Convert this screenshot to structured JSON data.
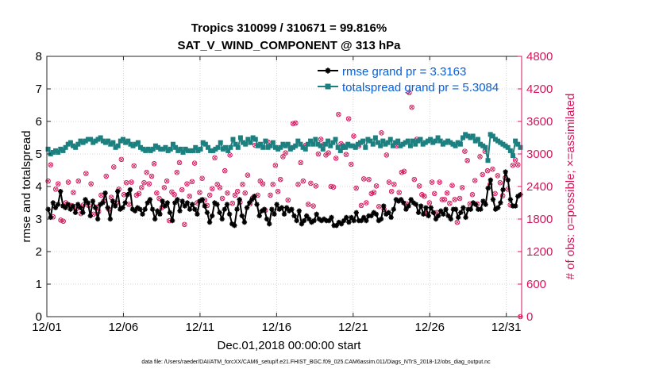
{
  "chart_data": {
    "type": "line",
    "title_line1": "Tropics 310099 / 310671 = 99.816%",
    "title_line2": "SAT_V_WIND_COMPONENT @ 313 hPa",
    "xlabel": "Dec.01,2018 00:00:00 start",
    "ylabel_left": "rmse and totalspread",
    "ylabel_right": "# of obs: o=possible; ×=assimilated",
    "footnote": "data file: /Users/raeder/DAI/ATM_forcXX/CAM6_setup/f.e21.FHIST_BGC.f09_025.CAM6assim.011/Diags_NTrS_2018-12/obs_diag_output.nc",
    "x_range_days": [
      0,
      31
    ],
    "x_ticks": [
      {
        "day": 0,
        "label": "12/01"
      },
      {
        "day": 5,
        "label": "12/06"
      },
      {
        "day": 10,
        "label": "12/11"
      },
      {
        "day": 15,
        "label": "12/16"
      },
      {
        "day": 20,
        "label": "12/21"
      },
      {
        "day": 25,
        "label": "12/26"
      },
      {
        "day": 30,
        "label": "12/31"
      }
    ],
    "y_left_range": [
      0,
      8
    ],
    "y_left_ticks": [
      "0",
      "1",
      "2",
      "3",
      "4",
      "5",
      "6",
      "7",
      "8"
    ],
    "y_right_range": [
      0,
      4800
    ],
    "y_right_ticks": [
      "0",
      "600",
      "1200",
      "1800",
      "2400",
      "3000",
      "3600",
      "4200",
      "4800"
    ],
    "legend": [
      {
        "name": "rmse grand pr = 3.3163",
        "color": "#000000"
      },
      {
        "name": "totalspread grand pr = 5.3084",
        "color": "#1b8080"
      }
    ],
    "rmse_values": [
      3.3,
      3.05,
      3.5,
      3.35,
      3.45,
      3.85,
      3.4,
      3.35,
      3.45,
      3.3,
      3.4,
      3.2,
      3.45,
      3.35,
      3.2,
      3.6,
      3.5,
      3.1,
      3.55,
      3.35,
      3.0,
      3.45,
      3.5,
      3.8,
      3.35,
      3.0,
      3.55,
      3.4,
      3.85,
      3.3,
      3.35,
      3.5,
      3.75,
      3.9,
      3.3,
      3.25,
      3.35,
      3.3,
      3.15,
      3.3,
      3.5,
      3.6,
      3.3,
      3.0,
      3.25,
      3.15,
      3.55,
      3.4,
      3.5,
      3.2,
      2.95,
      3.5,
      3.6,
      3.25,
      3.55,
      3.4,
      3.5,
      3.3,
      3.45,
      3.3,
      3.15,
      3.55,
      3.6,
      3.4,
      3.2,
      2.9,
      3.1,
      3.5,
      3.45,
      3.2,
      3.0,
      3.3,
      3.45,
      3.15,
      2.85,
      2.8,
      3.3,
      3.6,
      3.1,
      2.9,
      3.35,
      3.5,
      3.6,
      3.7,
      3.45,
      3.1,
      3.25,
      3.3,
      3.0,
      2.85,
      3.3,
      3.15,
      3.45,
      3.3,
      3.35,
      3.15,
      3.35,
      3.25,
      3.3,
      3.1,
      2.95,
      3.25,
      2.85,
      2.95,
      3.1,
      3.0,
      2.9,
      2.95,
      3.15,
      3.0,
      2.95,
      3.0,
      2.95,
      2.95,
      3.05,
      2.8,
      2.8,
      2.9,
      2.85,
      2.95,
      3.05,
      2.9,
      3.05,
      2.95,
      3.2,
      2.95,
      2.95,
      3.05,
      2.95,
      3.1,
      3.1,
      3.2,
      3.15,
      2.95,
      3.0,
      3.4,
      3.15,
      3.2,
      3.05,
      3.3,
      3.6,
      3.55,
      3.6,
      3.5,
      3.3,
      3.4,
      3.6,
      3.5,
      3.45,
      3.2,
      3.4,
      3.15,
      3.35,
      3.1,
      3.35,
      3.2,
      3.0,
      3.1,
      3.25,
      3.15,
      3.3,
      3.1,
      3.0,
      3.3,
      3.3,
      3.05,
      3.2,
      3.35,
      3.05,
      3.3,
      3.3,
      3.5,
      3.45,
      3.3,
      3.3,
      3.55,
      3.45,
      3.95,
      4.2,
      3.6,
      3.3,
      3.35,
      3.5,
      3.9,
      4.45,
      4.2,
      3.6,
      3.4,
      3.4,
      3.7,
      3.75
    ],
    "spread_values": [
      5.15,
      5.0,
      5.05,
      5.1,
      5.05,
      5.15,
      5.1,
      5.2,
      5.3,
      5.35,
      5.25,
      5.2,
      5.3,
      5.4,
      5.35,
      5.4,
      5.45,
      5.45,
      5.35,
      5.4,
      5.45,
      5.5,
      5.4,
      5.35,
      5.4,
      5.3,
      5.35,
      5.2,
      5.25,
      5.4,
      5.45,
      5.35,
      5.4,
      5.3,
      5.25,
      5.3,
      5.35,
      5.2,
      5.15,
      5.1,
      5.15,
      5.1,
      5.15,
      5.25,
      5.2,
      5.15,
      5.15,
      5.2,
      5.1,
      5.15,
      5.3,
      5.2,
      5.1,
      5.15,
      5.05,
      5.15,
      5.1,
      5.1,
      5.1,
      5.2,
      5.1,
      5.15,
      5.35,
      5.3,
      5.2,
      5.1,
      5.1,
      5.15,
      5.2,
      5.35,
      5.15,
      5.2,
      5.1,
      5.2,
      5.45,
      5.3,
      5.2,
      5.5,
      5.35,
      5.3,
      5.45,
      5.35,
      5.5,
      5.45,
      5.25,
      5.3,
      5.2,
      5.4,
      5.2,
      5.25,
      5.35,
      5.2,
      5.15,
      5.2,
      5.3,
      5.25,
      5.3,
      5.15,
      5.2,
      5.25,
      5.4,
      5.3,
      5.2,
      5.15,
      5.3,
      5.4,
      5.3,
      5.45,
      5.3,
      5.25,
      5.15,
      5.3,
      5.4,
      5.25,
      5.35,
      5.45,
      5.2,
      5.1,
      5.25,
      5.2,
      5.3,
      5.25,
      5.25,
      5.2,
      5.3,
      5.35,
      5.4,
      5.2,
      5.45,
      5.4,
      5.3,
      5.5,
      5.35,
      5.25,
      5.4,
      5.3,
      5.35,
      5.45,
      5.25,
      5.35,
      5.4,
      5.25,
      5.3,
      5.35,
      5.4,
      5.25,
      5.4,
      5.3,
      5.4,
      5.45,
      5.3,
      5.35,
      5.4,
      5.45,
      5.35,
      5.4,
      5.5,
      5.4,
      5.3,
      5.35,
      5.4,
      5.35,
      5.3,
      5.25,
      5.35,
      5.3,
      5.5,
      5.6,
      5.55,
      5.5,
      5.55,
      5.4,
      5.45,
      5.3,
      5.25,
      5.2,
      4.8,
      5.6,
      5.55,
      5.45,
      5.4,
      5.35,
      5.3,
      5.25,
      5.2,
      5.1,
      4.95,
      5.4,
      5.3,
      5.2
    ],
    "obs_possible": [
      2500,
      2800,
      1840,
      2350,
      2450,
      1780,
      1760,
      2100,
      2480,
      2050,
      2290,
      1980,
      2500,
      1900,
      2060,
      2640,
      2050,
      2450,
      1890,
      2020,
      1940,
      2240,
      2130,
      2590,
      1980,
      2200,
      2760,
      2100,
      2350,
      2900,
      2250,
      2470,
      2070,
      2480,
      2780,
      2240,
      2270,
      2380,
      2470,
      2660,
      2450,
      2590,
      2820,
      2280,
      2180,
      2010,
      2380,
      2500,
      1770,
      2300,
      2250,
      2660,
      2840,
      2340,
      1700,
      2450,
      2220,
      2490,
      2830,
      2100,
      2290,
      2550,
      2150,
      2050,
      2240,
      2360,
      2930,
      2440,
      2380,
      2180,
      2690,
      2280,
      2980,
      2090,
      2240,
      2310,
      2110,
      2440,
      2280,
      2610,
      2080,
      2190,
      3160,
      2240,
      2500,
      2450,
      1960,
      3220,
      2240,
      2440,
      2790,
      2310,
      2530,
      2950,
      3020,
      2150,
      3100,
      3560,
      3570,
      2440,
      2840,
      2500,
      3160,
      2070,
      2460,
      2040,
      2410,
      3000,
      3270,
      3170,
      2980,
      3020,
      2400,
      2390,
      2920,
      3730,
      3190,
      3120,
      2990,
      3650,
      2810,
      3330,
      2370,
      3150,
      2050,
      2540,
      2100,
      2530,
      2270,
      2290,
      2410,
      2030,
      3390,
      1980,
      2980,
      2480,
      2310,
      2440,
      3150,
      2290,
      2660,
      2680,
      2080,
      4130,
      3860,
      2530,
      3270,
      2410,
      2250,
      2220,
      1900,
      2100,
      2480,
      2270,
      1920,
      2480,
      2160,
      2160,
      2280,
      2090,
      2420,
      2160,
      1740,
      2180,
      2380,
      3050,
      2880,
      2080,
      2250,
      2510,
      2080,
      2950,
      2620,
      3050,
      2690,
      2440,
      2720,
      2270,
      2600,
      2470,
      2230,
      2560,
      2350,
      2060,
      2790,
      2890,
      2800,
      0
    ]
  },
  "colors": {
    "rmse": "#000000",
    "spread": "#1b8080",
    "obs": "#d4145a",
    "legend_text": "#0a5fd6"
  }
}
